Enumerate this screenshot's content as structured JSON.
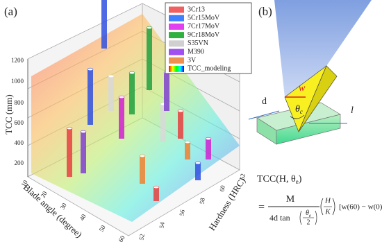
{
  "panel_a": {
    "label": "(a)",
    "z_axis": {
      "title": "TCC (mm)",
      "ticks": [
        "200",
        "400",
        "600",
        "800",
        "1000",
        "1200"
      ]
    },
    "x_axis": {
      "title": "Blade angle (degree)",
      "ticks": [
        "10",
        "20",
        "30",
        "40",
        "50",
        "60"
      ]
    },
    "y_axis": {
      "title": "Hardness (HRC)",
      "ticks": [
        "52",
        "54",
        "56",
        "58",
        "60",
        "62"
      ]
    },
    "legend": [
      "3Cr13",
      "5Cr15MoV",
      "7Cr17MoV",
      "9Cr18MoV",
      "S35VN",
      "M390",
      "3V",
      "TCC_modeling"
    ]
  },
  "panel_b": {
    "label": "(b)",
    "labels": {
      "w": "w",
      "d": "d",
      "theta": "θ",
      "theta_sub": "c",
      "l": "l"
    },
    "formula": {
      "lhs": "TCC(H, θ",
      "lhs_sub": "e",
      "lhs_close": ")",
      "eq": "=",
      "numerator": "M",
      "denominator": "4d tan",
      "angle": "θ",
      "angle_sub": "e",
      "half": "2",
      "ratio_top": "H",
      "ratio_bottom": "K",
      "bracket": "[w(60) − w(0)]"
    }
  }
}
